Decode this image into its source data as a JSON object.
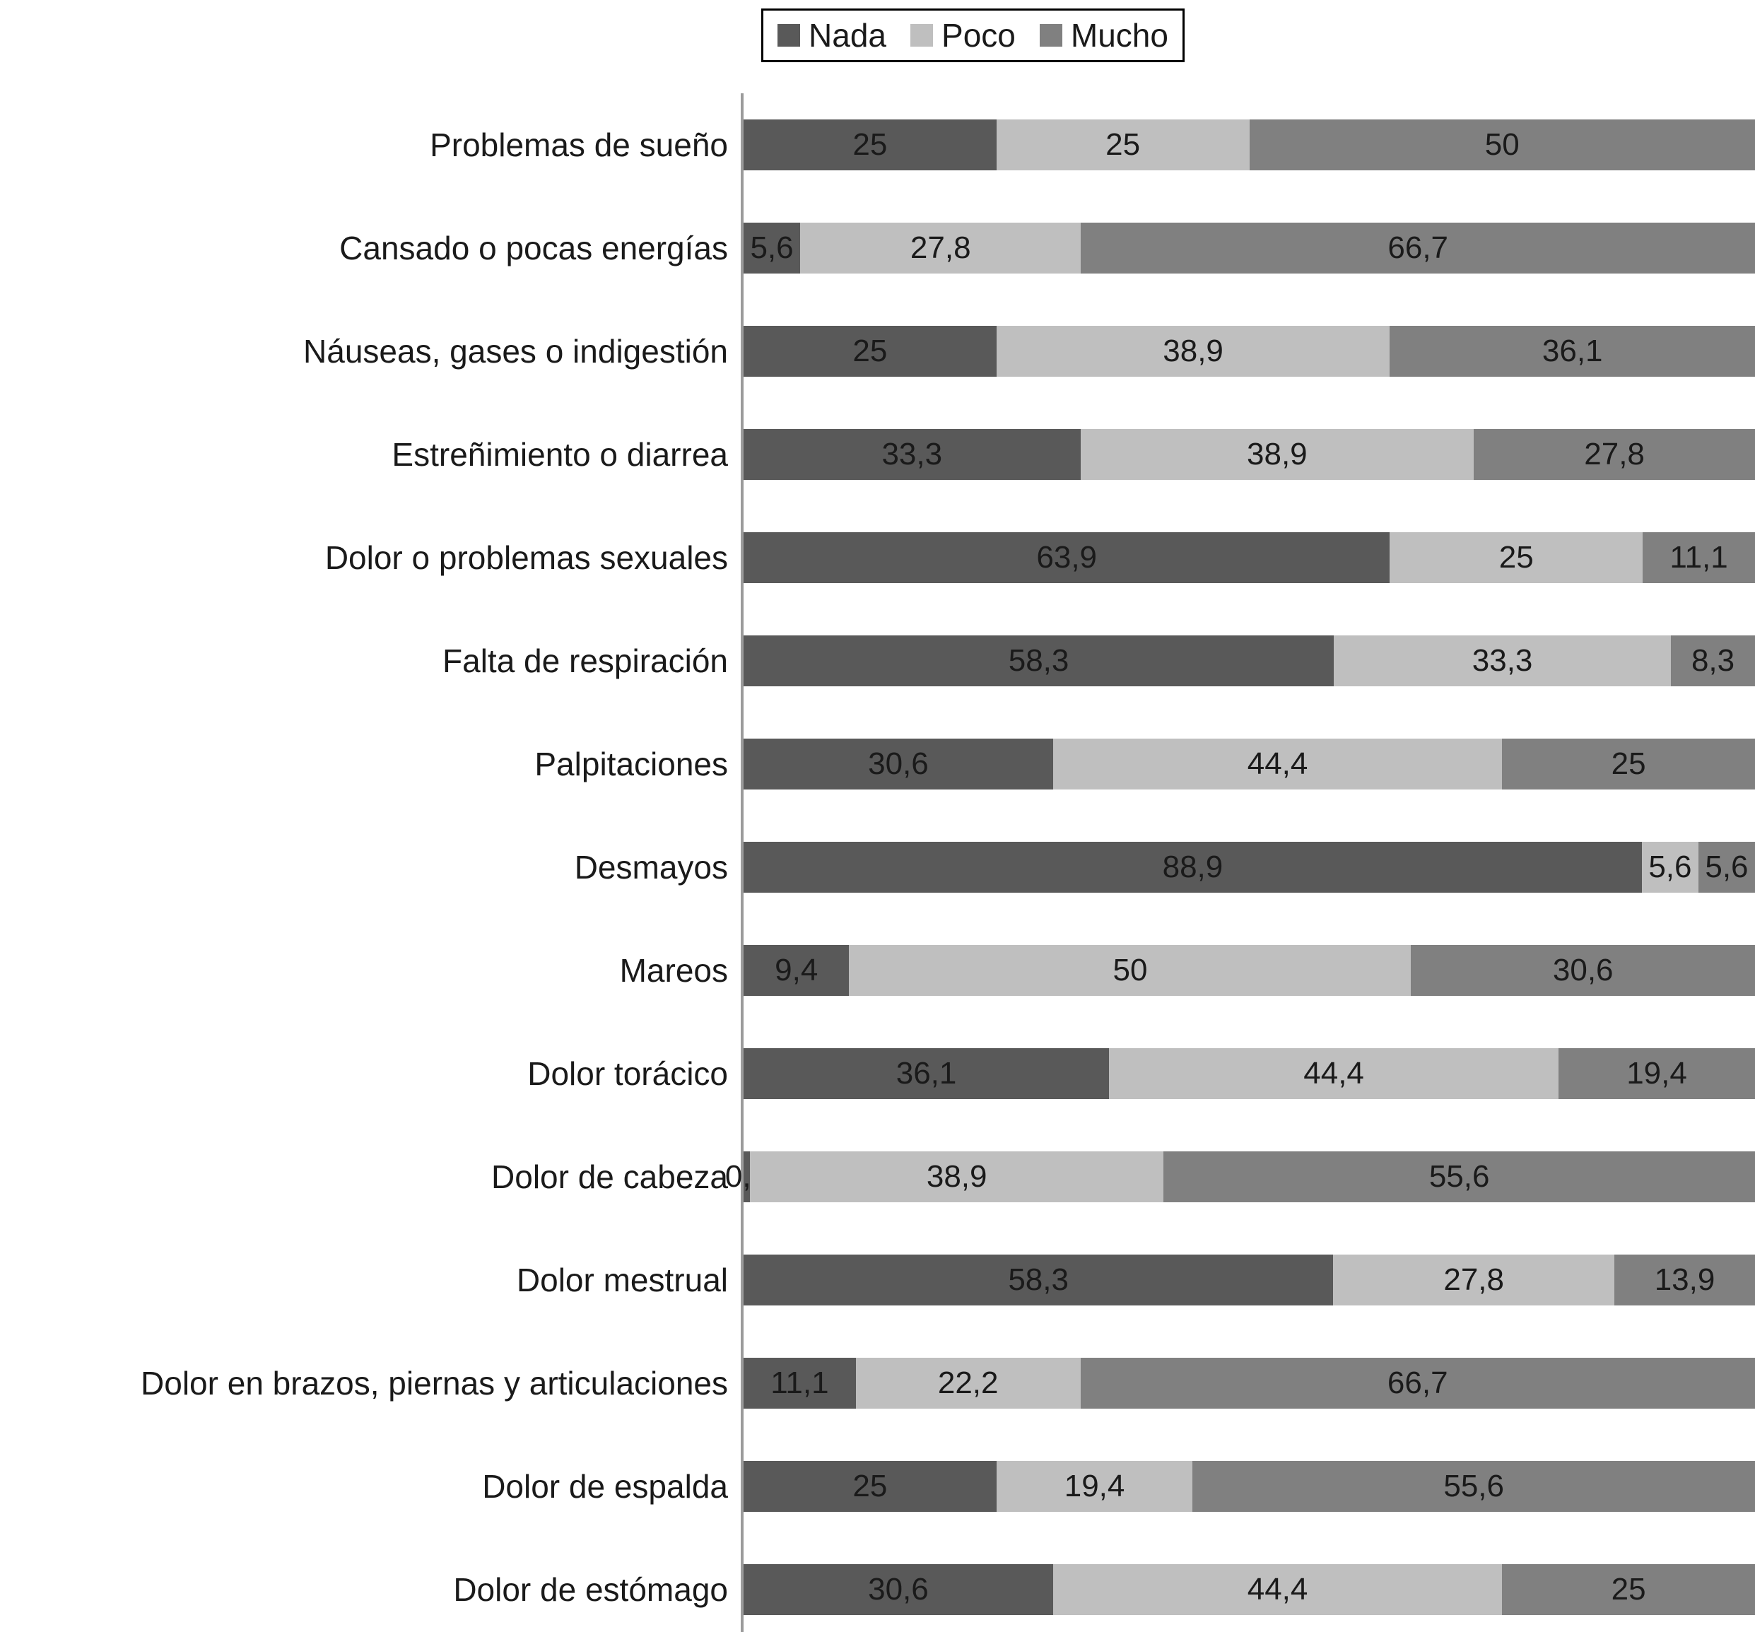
{
  "chart_data": {
    "type": "bar",
    "orientation": "horizontal",
    "stacked": "100%",
    "title": "",
    "xlabel": "",
    "ylabel": "",
    "xlim": [
      0,
      100
    ],
    "grid": false,
    "legend": {
      "position": "top",
      "entries": [
        {
          "name": "Nada",
          "color": "#595959"
        },
        {
          "name": "Poco",
          "color": "#bfbfbf"
        },
        {
          "name": "Mucho",
          "color": "#808080"
        }
      ]
    },
    "categories": [
      "Problemas de sueño",
      "Cansado o pocas energías",
      "Náuseas, gases o indigestión",
      "Estreñimiento o diarrea",
      "Dolor o problemas sexuales",
      "Falta de respiración",
      "Palpitaciones",
      "Desmayos",
      "Mareos",
      "Dolor torácico",
      "Dolor de cabeza",
      "Dolor mestrual",
      "Dolor en brazos, piernas y articulaciones",
      "Dolor de espalda",
      "Dolor de estómago"
    ],
    "series": [
      {
        "name": "Nada",
        "color": "#595959",
        "values": [
          25,
          5.6,
          25,
          33.3,
          63.9,
          58.3,
          30.6,
          88.9,
          9.4,
          36.1,
          0.6,
          58.3,
          11.1,
          25,
          30.6
        ],
        "labels": [
          "25",
          "5,6",
          "25",
          "33,3",
          "63,9",
          "58,3",
          "30,6",
          "88,9",
          "9,4",
          "36,1",
          "0,6",
          "58,3",
          "11,1",
          "25",
          "30,6"
        ]
      },
      {
        "name": "Poco",
        "color": "#bfbfbf",
        "values": [
          25,
          27.8,
          38.9,
          38.9,
          25,
          33.3,
          44.4,
          5.6,
          50,
          44.4,
          38.9,
          27.8,
          22.2,
          19.4,
          44.4
        ],
        "labels": [
          "25",
          "27,8",
          "38,9",
          "38,9",
          "25",
          "33,3",
          "44,4",
          "5,6",
          "50",
          "44,4",
          "38,9",
          "27,8",
          "22,2",
          "19,4",
          "44,4"
        ]
      },
      {
        "name": "Mucho",
        "color": "#808080",
        "values": [
          50,
          66.7,
          36.1,
          27.8,
          11.1,
          8.3,
          25,
          5.6,
          30.6,
          19.4,
          55.6,
          13.9,
          66.7,
          55.6,
          25
        ],
        "labels": [
          "50",
          "66,7",
          "36,1",
          "27,8",
          "11,1",
          "8,3",
          "25",
          "5,6",
          "30,6",
          "19,4",
          "55,6",
          "13,9",
          "66,7",
          "55,6",
          "25"
        ]
      }
    ]
  }
}
